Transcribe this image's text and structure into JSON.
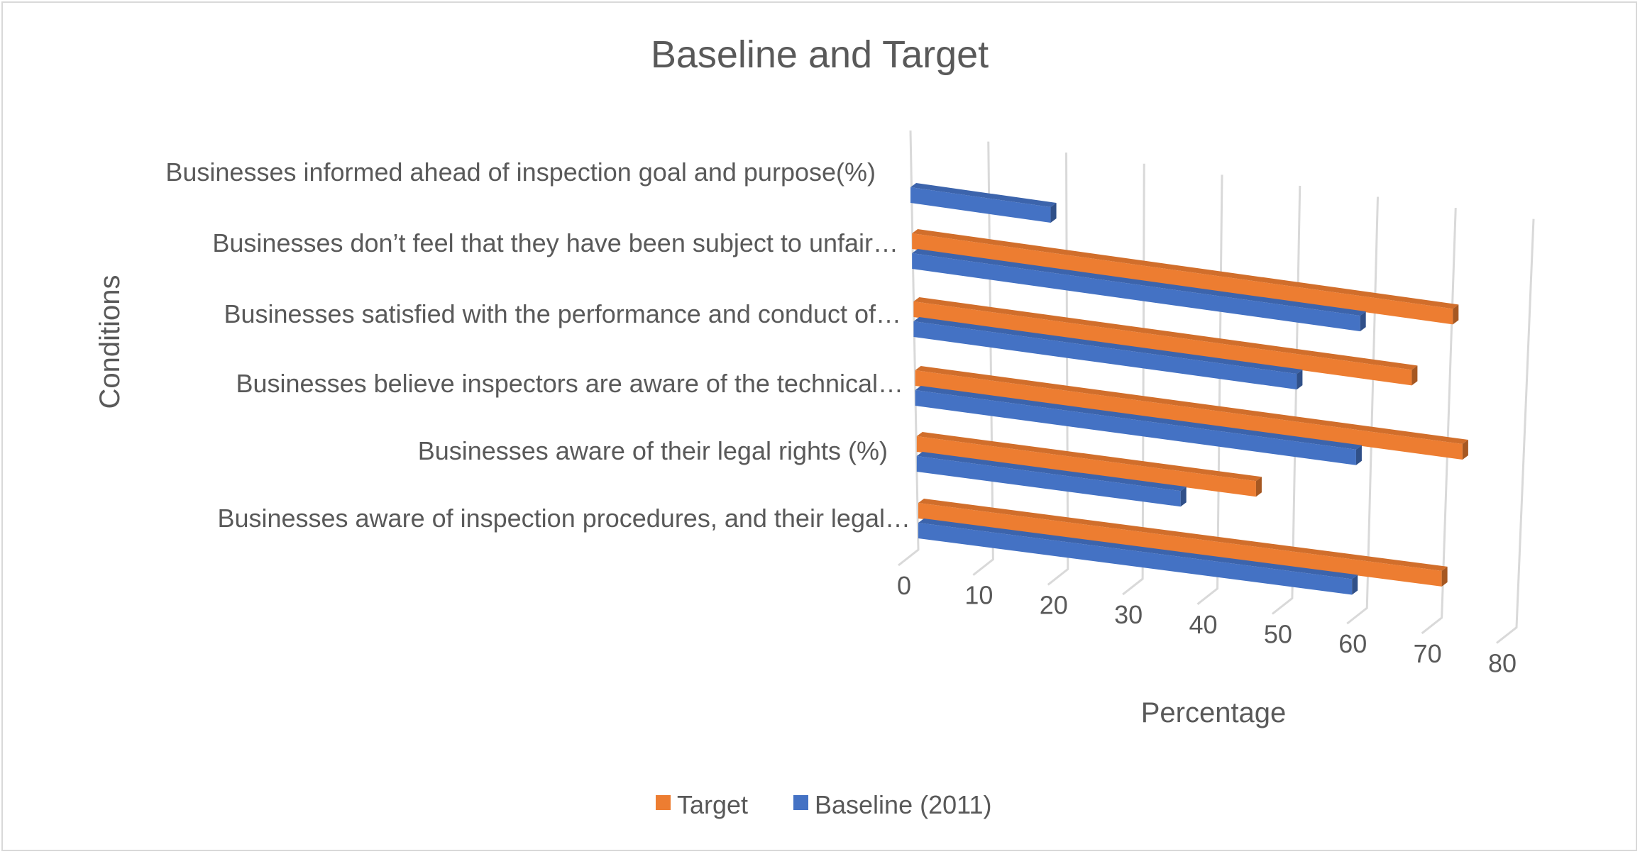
{
  "chart_data": {
    "type": "bar",
    "orientation": "horizontal",
    "style": "3d-perspective",
    "title": "Baseline and Target",
    "xlabel": "Percentage",
    "ylabel": "Conditions",
    "xlim": [
      0,
      80
    ],
    "x_ticks": [
      "0",
      "10",
      "20",
      "30",
      "40",
      "50",
      "60",
      "70",
      "80"
    ],
    "grid": true,
    "legend_position": "bottom",
    "categories": [
      "Businesses informed ahead of inspection goal and purpose(%)",
      "Businesses don’t feel that they have been subject to unfair…",
      "Businesses satisfied with the performance and conduct of…",
      "Businesses believe inspectors are aware of the technical…",
      "Businesses aware of their legal rights (%)",
      "Businesses aware of inspection procedures, and their legal…"
    ],
    "series": [
      {
        "name": "Target",
        "color": "#ed7d31",
        "values": [
          null,
          70,
          65,
          72,
          45,
          70
        ]
      },
      {
        "name": "Baseline (2011)",
        "color": "#4472c4",
        "values": [
          18,
          58,
          50,
          58,
          35,
          58
        ]
      }
    ]
  }
}
